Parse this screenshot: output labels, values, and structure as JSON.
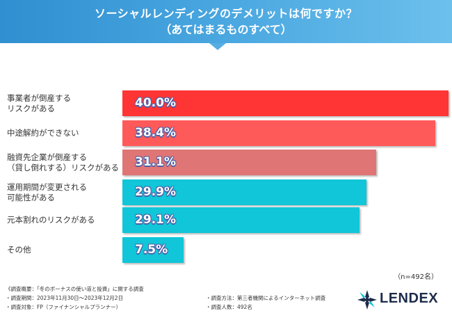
{
  "header": {
    "title_line1": "ソーシャルレンディングのデメリットは何ですか？",
    "title_line2": "（あてはまるものすべて）"
  },
  "chart_data": {
    "type": "bar",
    "orientation": "horizontal",
    "unit": "%",
    "xlim": [
      0,
      40
    ],
    "categories": [
      [
        "事業者が倒産する",
        "リスクがある"
      ],
      [
        "中途解約ができない"
      ],
      [
        "融資先企業が倒産する",
        "（貸し倒れする）リスクがある"
      ],
      [
        "運用期間が変更される",
        "可能性がある"
      ],
      [
        "元本割れのリスクがある"
      ],
      [
        "その他"
      ]
    ],
    "values": [
      40.0,
      38.4,
      31.1,
      29.9,
      29.1,
      7.5
    ],
    "value_labels": [
      "40.0%",
      "38.4%",
      "31.1%",
      "29.9%",
      "29.1%",
      "7.5%"
    ],
    "colors": [
      "#ff3535",
      "#ff5a5a",
      "#e07575",
      "#10c6d8",
      "#10c6d8",
      "#10c6d8"
    ]
  },
  "sample_note": "（n=492名）",
  "footer": {
    "survey_overview": "《調査概要：「冬のボーナスの使い道と投資」に関する調査",
    "survey_period": "・調査期間：2023年11月30日～2023年12月2日",
    "survey_method": "・調査方法：第三者機関によるインターネット調査",
    "survey_target": "・調査対象：FP（ファイナンシャルプランナー）",
    "survey_count": "・調査人数：492名"
  },
  "logo": {
    "text": "LENDEX",
    "color": "#1d2b4a",
    "icon": "lendex-star-icon"
  }
}
